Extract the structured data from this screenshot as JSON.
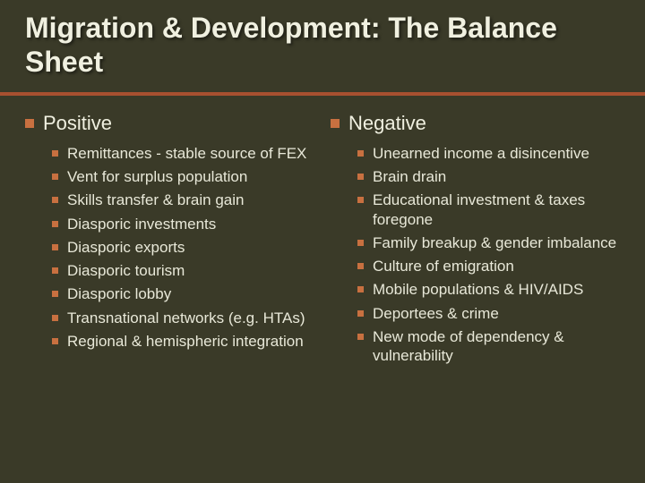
{
  "slide": {
    "title": "Migration & Development: The Balance Sheet",
    "background_color": "#3a3a28",
    "text_color": "#e8e8d8",
    "accent_color": "#c87040",
    "divider_color": "#a85030",
    "title_fontsize": 32,
    "section_fontsize": 22,
    "item_fontsize": 17,
    "left": {
      "heading": "Positive",
      "items": [
        "Remittances - stable source of FEX",
        "Vent for surplus population",
        "Skills transfer & brain gain",
        "Diasporic investments",
        "Diasporic exports",
        "Diasporic tourism",
        "Diasporic lobby",
        "Transnational networks (e.g. HTAs)",
        "Regional & hemispheric integration"
      ]
    },
    "right": {
      "heading": "Negative",
      "items": [
        "Unearned income a disincentive",
        "Brain drain",
        "Educational investment & taxes foregone",
        "Family breakup & gender imbalance",
        "Culture of emigration",
        "Mobile populations & HIV/AIDS",
        "Deportees & crime",
        "New mode of dependency & vulnerability"
      ]
    }
  }
}
